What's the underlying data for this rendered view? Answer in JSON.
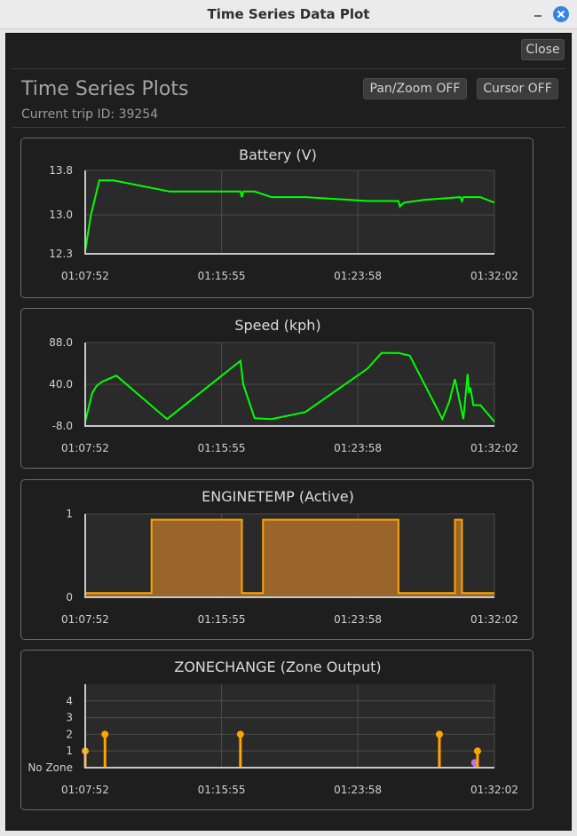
{
  "window": {
    "title": "Time Series Data Plot"
  },
  "header": {
    "close_label": "Close",
    "title": "Time Series Plots",
    "trip_label": "Current trip ID: 39254",
    "pan_zoom_label": "Pan/Zoom OFF",
    "cursor_label": "Cursor OFF"
  },
  "colors": {
    "series_green": "#00ff00",
    "series_orange": "#ffa500",
    "fill_orange": "#a0682a",
    "zone_purple": "#c070e0"
  },
  "chart_data": [
    {
      "type": "line",
      "title": "Battery (V)",
      "ylim": [
        12.3,
        13.8
      ],
      "yticks": [
        "13.8",
        "13.0",
        "12.3"
      ],
      "yticks_values": [
        13.8,
        13.0,
        12.3
      ],
      "xlim": [
        0,
        1450
      ],
      "xticks": [
        "01:07:52",
        "01:15:55",
        "01:23:58",
        "01:32:02"
      ],
      "xticks_values": [
        0,
        483,
        966,
        1450
      ],
      "series": [
        {
          "name": "Battery",
          "x": [
            0,
            20,
            50,
            100,
            300,
            550,
            555,
            560,
            600,
            660,
            780,
            1000,
            1110,
            1115,
            1120,
            1130,
            1200,
            1330,
            1335,
            1340,
            1400,
            1450
          ],
          "y": [
            12.35,
            13.0,
            13.62,
            13.62,
            13.42,
            13.42,
            13.32,
            13.42,
            13.42,
            13.32,
            13.32,
            13.25,
            13.25,
            13.15,
            13.18,
            13.22,
            13.27,
            13.32,
            13.25,
            13.32,
            13.32,
            13.22
          ]
        }
      ]
    },
    {
      "type": "line",
      "title": "Speed (kph)",
      "ylim": [
        -8.0,
        88.0
      ],
      "yticks": [
        "88.0",
        "40.0",
        "-8.0"
      ],
      "yticks_values": [
        88,
        40,
        -8
      ],
      "xlim": [
        0,
        1450
      ],
      "xticks": [
        "01:07:52",
        "01:15:55",
        "01:23:58",
        "01:32:02"
      ],
      "xticks_values": [
        0,
        483,
        966,
        1450
      ],
      "series": [
        {
          "name": "Speed",
          "x": [
            0,
            25,
            40,
            60,
            110,
            290,
            550,
            560,
            600,
            660,
            780,
            1000,
            1050,
            1110,
            1150,
            1250,
            1265,
            1290,
            1310,
            1340,
            1355,
            1360,
            1365,
            1370,
            1375,
            1400,
            1450
          ],
          "y": [
            -3,
            30,
            38,
            43,
            50,
            0,
            67,
            40,
            1,
            0,
            8,
            58,
            76,
            76,
            73,
            10,
            0,
            20,
            46,
            0,
            52,
            30,
            36,
            26,
            16,
            16,
            -3
          ]
        }
      ]
    },
    {
      "type": "area",
      "title": "ENGINETEMP (Active)",
      "ylim": [
        0,
        1
      ],
      "yticks": [
        "1",
        "0"
      ],
      "yticks_values": [
        1,
        0
      ],
      "xlim": [
        0,
        1450
      ],
      "xticks": [
        "01:07:52",
        "01:15:55",
        "01:23:58",
        "01:32:02"
      ],
      "xticks_values": [
        0,
        483,
        966,
        1450
      ],
      "series": [
        {
          "name": "Active",
          "x": [
            0,
            235,
            235,
            555,
            555,
            630,
            630,
            1110,
            1110,
            1310,
            1310,
            1335,
            1335,
            1450
          ],
          "y": [
            0.05,
            0.05,
            0.93,
            0.93,
            0.05,
            0.05,
            0.93,
            0.93,
            0.05,
            0.05,
            0.93,
            0.93,
            0.05,
            0.05
          ]
        }
      ]
    },
    {
      "type": "scatter",
      "title": "ZONECHANGE (Zone Output)",
      "ylim": [
        0,
        5
      ],
      "yticks": [
        "4",
        "3",
        "2",
        "1",
        "No Zone"
      ],
      "yticks_values": [
        4,
        3,
        2,
        1,
        0
      ],
      "xlim": [
        0,
        1450
      ],
      "xticks": [
        "01:07:52",
        "01:15:55",
        "01:23:58",
        "01:32:02"
      ],
      "xticks_values": [
        0,
        483,
        966,
        1450
      ],
      "stems": [
        {
          "x": 0,
          "y": 1,
          "color": "orange"
        },
        {
          "x": 70,
          "y": 2,
          "color": "orange"
        },
        {
          "x": 550,
          "y": 2,
          "color": "orange"
        },
        {
          "x": 1255,
          "y": 2,
          "color": "orange"
        },
        {
          "x": 1380,
          "y": 0.3,
          "color": "purple"
        },
        {
          "x": 1390,
          "y": 1,
          "color": "orange"
        }
      ]
    }
  ]
}
